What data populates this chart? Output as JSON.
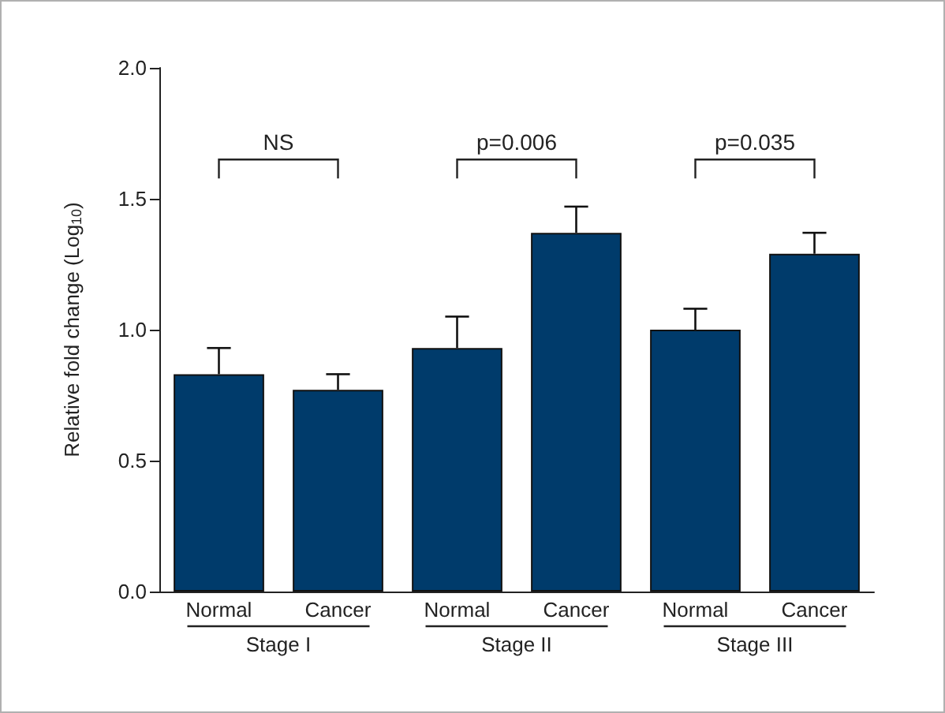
{
  "chart_data": {
    "type": "bar",
    "ylabel": "Relative fold change (Log$_{10}$)",
    "categories": [
      "Normal",
      "Cancer",
      "Normal",
      "Cancer",
      "Normal",
      "Cancer"
    ],
    "values": [
      0.83,
      0.77,
      0.93,
      1.37,
      1.0,
      1.29
    ],
    "errors": [
      [
        0.83,
        0.93
      ],
      [
        0.77,
        0.83
      ],
      [
        0.93,
        1.05
      ],
      [
        1.37,
        1.47
      ],
      [
        1.0,
        1.08
      ],
      [
        1.29,
        1.37
      ]
    ],
    "color": "#003b6b",
    "ylim": [
      0,
      2
    ],
    "yticks": [
      {
        "value": 0,
        "label": "0.0"
      },
      {
        "value": 0.5,
        "label": "0.5"
      },
      {
        "value": 1,
        "label": "1.0"
      },
      {
        "value": 1.5,
        "label": "1.5"
      },
      {
        "value": 2,
        "label": "2.0"
      }
    ],
    "grid": false,
    "annotations": [
      "Stage I",
      "Stage II",
      "Stage III",
      "NS",
      "p=0.006",
      "p=0.035"
    ]
  }
}
